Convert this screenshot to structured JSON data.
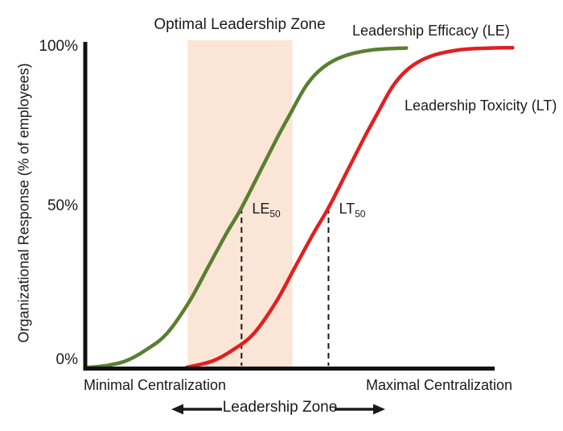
{
  "chart_data": {
    "type": "line",
    "title": "Optimal Leadership Zone",
    "ylabel": "Organizational Response (% of employees)",
    "xlabel_left": "Minimal Centralization",
    "xlabel_right": "Maximal Centralization",
    "x_axis_note": "Leadership Zone",
    "x_units": "fraction of centralization axis (0 = minimal, 1 = maximal)",
    "ylim": [
      0,
      100
    ],
    "grid": false,
    "y_ticks": [
      {
        "label": "100%",
        "value": 100
      },
      {
        "label": "50%",
        "value": 50
      },
      {
        "label": "0%",
        "value": 0
      }
    ],
    "optimal_zone": {
      "label": "Optimal Leadership Zone",
      "x_from": 0.251,
      "x_to": 0.506,
      "fill": "#fbe5d6"
    },
    "series": [
      {
        "name": "Leadership Efficacy (LE)",
        "color": "#597f30",
        "half_max": {
          "text": "LE",
          "sub": "50",
          "x": 0.382,
          "y": 50
        },
        "points": [
          [
            0.0,
            0.4
          ],
          [
            0.05,
            1.0
          ],
          [
            0.1,
            2.5
          ],
          [
            0.15,
            6.0
          ],
          [
            0.2,
            11.0
          ],
          [
            0.255,
            21.0
          ],
          [
            0.3,
            31.5
          ],
          [
            0.345,
            42.0
          ],
          [
            0.382,
            50.0
          ],
          [
            0.43,
            62.0
          ],
          [
            0.47,
            72.0
          ],
          [
            0.5,
            79.0
          ],
          [
            0.54,
            88.0
          ],
          [
            0.58,
            93.5
          ],
          [
            0.63,
            97.0
          ],
          [
            0.7,
            99.0
          ],
          [
            0.784,
            99.6
          ]
        ]
      },
      {
        "name": "Leadership Toxicity (LT)",
        "color": "#e02020",
        "half_max": {
          "text": "LT",
          "sub": "50",
          "x": 0.594,
          "y": 50
        },
        "points": [
          [
            0.248,
            0.5
          ],
          [
            0.312,
            2.5
          ],
          [
            0.362,
            6.0
          ],
          [
            0.412,
            11.0
          ],
          [
            0.467,
            21.0
          ],
          [
            0.512,
            31.5
          ],
          [
            0.557,
            42.0
          ],
          [
            0.594,
            50.0
          ],
          [
            0.642,
            62.0
          ],
          [
            0.682,
            72.0
          ],
          [
            0.712,
            79.0
          ],
          [
            0.752,
            88.0
          ],
          [
            0.792,
            93.5
          ],
          [
            0.842,
            97.0
          ],
          [
            0.912,
            99.0
          ],
          [
            0.99,
            99.6
          ],
          [
            1.043,
            99.7
          ]
        ]
      }
    ],
    "colors": {
      "axis": "#111111",
      "text": "#1a1a1a",
      "dashed_marker": "#1a1a1a"
    }
  }
}
